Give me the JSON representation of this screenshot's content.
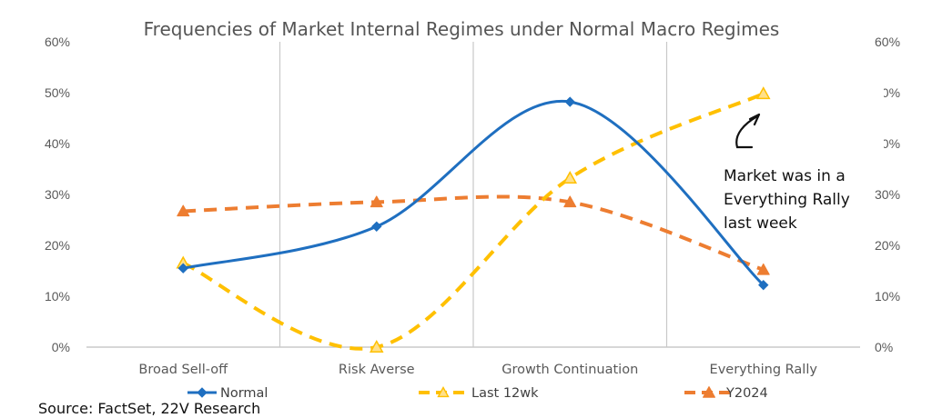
{
  "chart_data": {
    "type": "line",
    "title": "Frequencies of Market Internal Regimes under Normal Macro Regimes",
    "categories": [
      "Broad Sell-off",
      "Risk Averse",
      "Growth Continuation",
      "Everything Rally"
    ],
    "ylim": [
      0,
      0.6
    ],
    "y_ticks": [
      "0%",
      "10%",
      "20%",
      "30%",
      "40%",
      "50%",
      "60%"
    ],
    "y_tick_values": [
      0,
      0.1,
      0.2,
      0.3,
      0.4,
      0.5,
      0.6
    ],
    "secondary_axis": true,
    "smooth": true,
    "legend_position": "bottom",
    "series": [
      {
        "name": "Normal",
        "values": [
          0.155,
          0.237,
          0.482,
          0.122
        ],
        "color": "#1f6fc0",
        "style": "solid",
        "marker": "diamond"
      },
      {
        "name": "Last 12wk",
        "values": [
          0.165,
          0.0,
          0.332,
          0.498
        ],
        "color": "#ffc000",
        "style": "dashed",
        "marker": "triangle"
      },
      {
        "name": "Y2024",
        "values": [
          0.267,
          0.285,
          0.285,
          0.152
        ],
        "color": "#ed7d31",
        "style": "dashed",
        "marker": "triangle"
      }
    ],
    "annotation": {
      "lines": [
        "Market was in a",
        "Everything Rally",
        "last week"
      ]
    }
  },
  "source": "Source: FactSet, 22V Research"
}
